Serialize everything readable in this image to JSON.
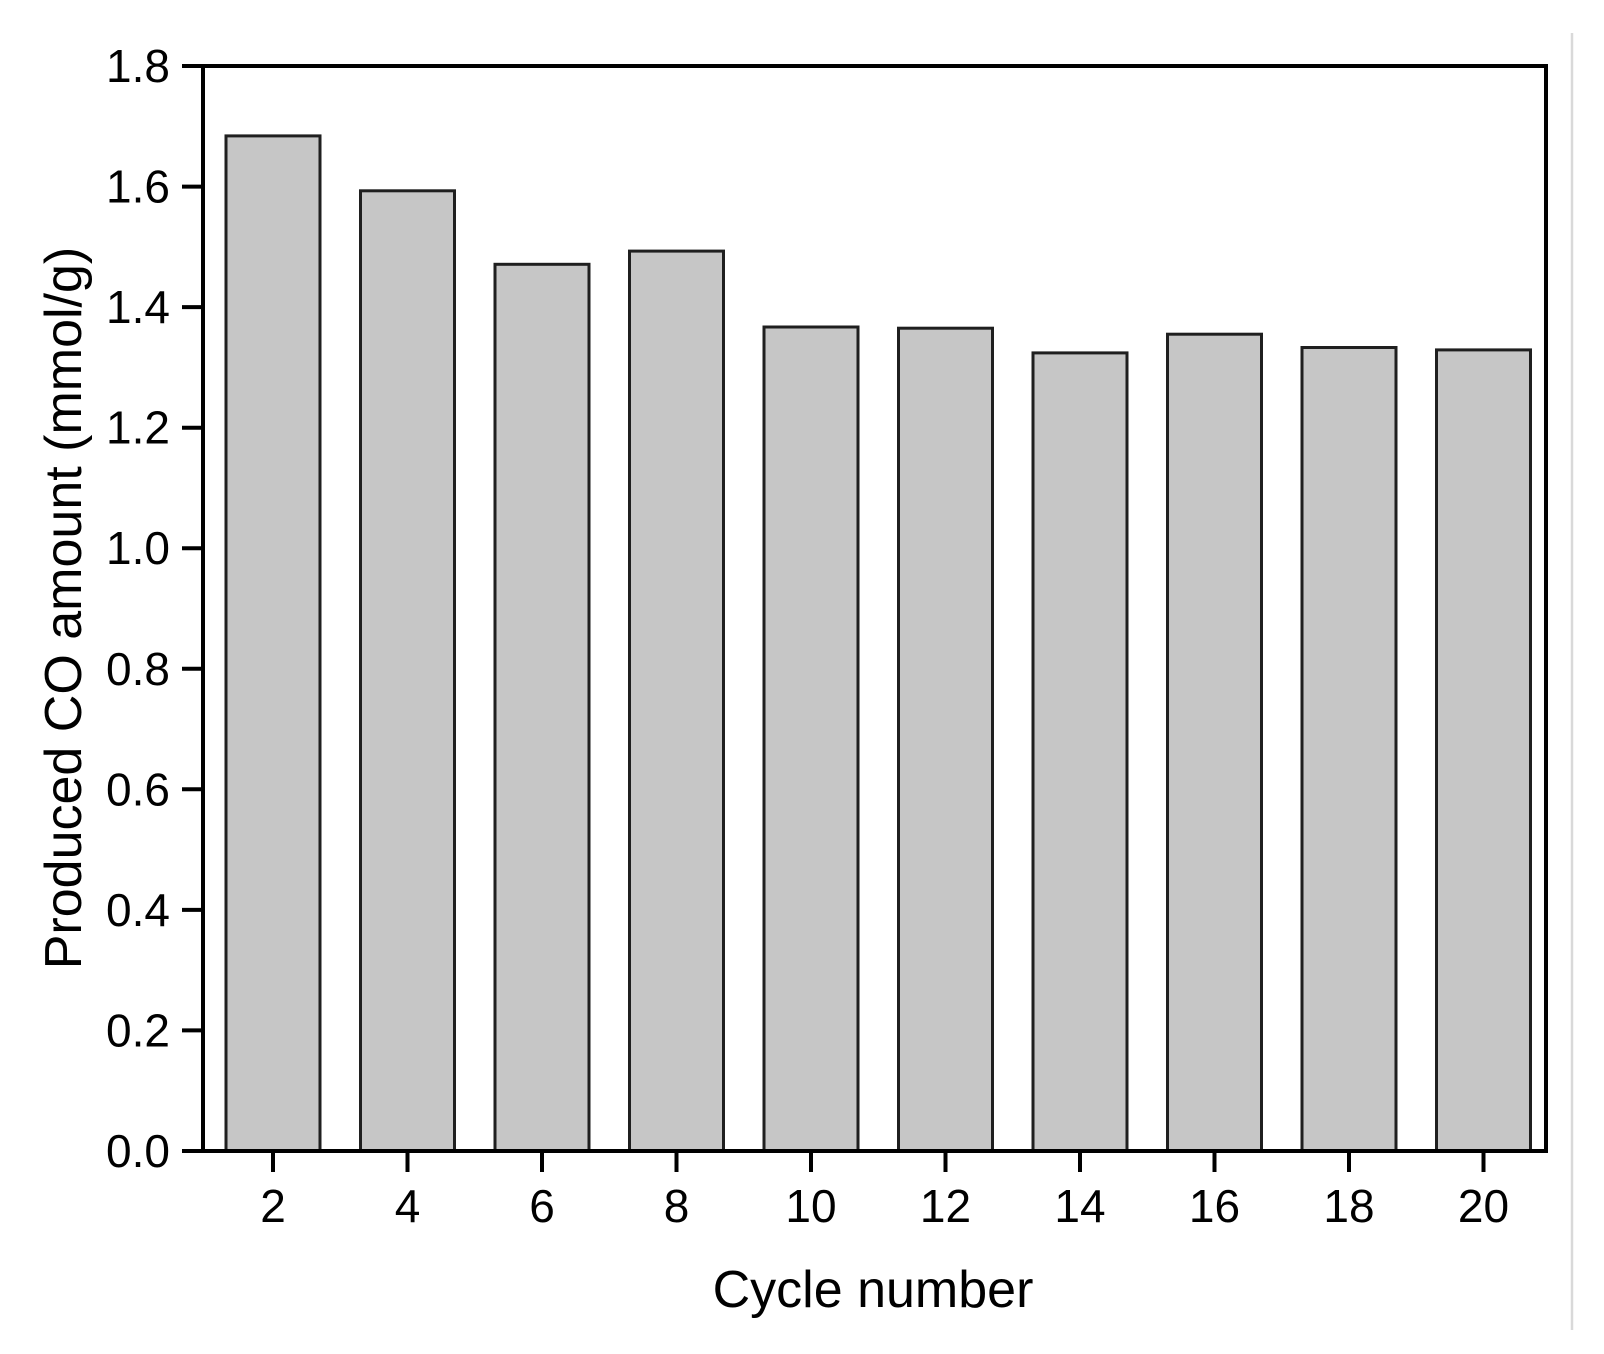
{
  "figure": {
    "background": "#ffffff"
  },
  "chart_data": {
    "type": "bar",
    "title": "",
    "xlabel": "Cycle number",
    "ylabel": "Produced CO amount (mmol/g)",
    "categories": [
      2,
      4,
      6,
      8,
      10,
      12,
      14,
      16,
      18,
      20
    ],
    "values": [
      1.684,
      1.593,
      1.471,
      1.493,
      1.367,
      1.365,
      1.324,
      1.355,
      1.333,
      1.329
    ],
    "xticks": [
      "2",
      "4",
      "6",
      "8",
      "10",
      "12",
      "14",
      "16",
      "18",
      "20"
    ],
    "yticks": [
      0.0,
      0.2,
      0.4,
      0.6,
      0.8,
      1.0,
      1.2,
      1.4,
      1.6,
      1.8
    ],
    "xlim": [
      1,
      21
    ],
    "ylim": [
      0.0,
      1.8
    ],
    "grid": false,
    "legend": "none",
    "bar_fill": "#c6c6c6",
    "bar_edge": "#1f1f1f",
    "axis_color": "#000000",
    "text_color": "#000000"
  },
  "decor": {
    "right_edge_line_color": "#d9d9d9"
  }
}
